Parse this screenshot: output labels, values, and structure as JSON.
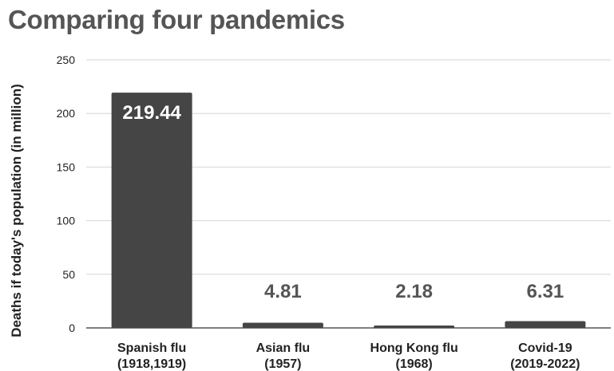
{
  "chart_data": {
    "type": "bar",
    "title": "Comparing four pandemics",
    "xlabel": "",
    "ylabel": "Deaths if today's population (in million)",
    "categories": [
      [
        "Spanish flu",
        "(1918,1919)"
      ],
      [
        "Asian flu",
        "(1957)"
      ],
      [
        "Hong Kong flu",
        "(1968)"
      ],
      [
        "Covid-19",
        "(2019-2022)"
      ]
    ],
    "values": [
      219.44,
      4.81,
      2.18,
      6.31
    ],
    "data_labels": [
      "219.44",
      "4.81",
      "2.18",
      "6.31"
    ],
    "ylim": [
      0,
      250
    ],
    "yticks": [
      0,
      50,
      100,
      150,
      200,
      250
    ],
    "grid": true,
    "legend": "none",
    "colors": {
      "bar": "#454545",
      "title": "#555555",
      "axis_text": "#222222",
      "grid": "#d6d6d6",
      "label_outside": "#555555",
      "label_inside": "#ffffff"
    }
  }
}
